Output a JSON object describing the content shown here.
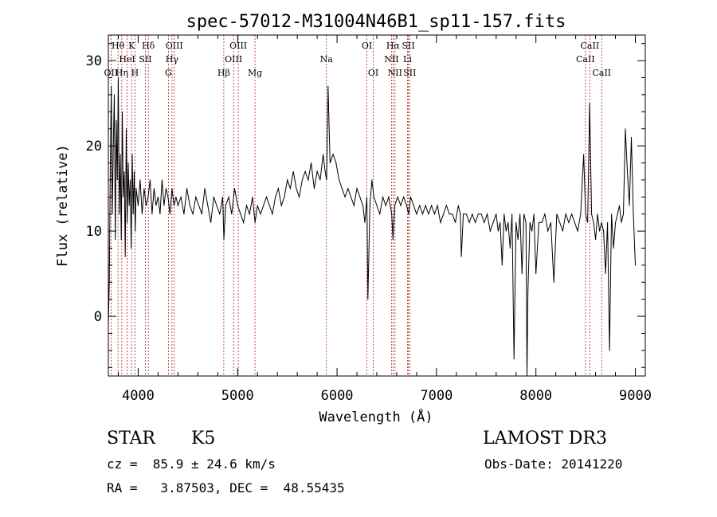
{
  "chart_data": {
    "type": "line",
    "title": "spec-57012-M31004N46B1_sp11-157.fits",
    "xlabel": "Wavelength (Å)",
    "ylabel": "Flux (relative)",
    "xlim": [
      3700,
      9100
    ],
    "ylim": [
      -7,
      33
    ],
    "xticks": [
      4000,
      5000,
      6000,
      7000,
      8000,
      9000
    ],
    "xtick_labels": [
      "4000",
      "5000",
      "6000",
      "7000",
      "8000",
      "9000"
    ],
    "yticks": [
      0,
      10,
      20,
      30
    ],
    "ytick_labels": [
      "0",
      "10",
      "20",
      "30"
    ],
    "series": [
      {
        "name": "flux",
        "color": "#000000",
        "x": [
          3700,
          3710,
          3720,
          3730,
          3740,
          3750,
          3760,
          3770,
          3780,
          3790,
          3800,
          3810,
          3820,
          3830,
          3840,
          3850,
          3860,
          3870,
          3880,
          3890,
          3900,
          3910,
          3920,
          3930,
          3940,
          3950,
          3960,
          3970,
          3980,
          3990,
          4000,
          4020,
          4040,
          4060,
          4080,
          4100,
          4120,
          4140,
          4160,
          4180,
          4200,
          4220,
          4240,
          4260,
          4280,
          4300,
          4320,
          4340,
          4360,
          4380,
          4400,
          4430,
          4460,
          4490,
          4520,
          4550,
          4580,
          4610,
          4640,
          4670,
          4700,
          4730,
          4760,
          4790,
          4820,
          4850,
          4862,
          4880,
          4910,
          4940,
          4970,
          5000,
          5030,
          5060,
          5090,
          5120,
          5150,
          5175,
          5200,
          5230,
          5260,
          5290,
          5320,
          5350,
          5380,
          5410,
          5440,
          5470,
          5500,
          5530,
          5560,
          5590,
          5620,
          5650,
          5680,
          5710,
          5740,
          5770,
          5800,
          5830,
          5860,
          5880,
          5895,
          5910,
          5930,
          5960,
          5990,
          6020,
          6050,
          6080,
          6110,
          6140,
          6170,
          6200,
          6230,
          6260,
          6280,
          6300,
          6310,
          6330,
          6350,
          6370,
          6400,
          6430,
          6460,
          6490,
          6520,
          6550,
          6563,
          6580,
          6610,
          6640,
          6670,
          6700,
          6720,
          6740,
          6770,
          6800,
          6830,
          6860,
          6890,
          6920,
          6950,
          6980,
          7010,
          7040,
          7070,
          7100,
          7130,
          7160,
          7190,
          7220,
          7240,
          7250,
          7270,
          7300,
          7330,
          7360,
          7390,
          7420,
          7450,
          7480,
          7510,
          7540,
          7570,
          7600,
          7620,
          7640,
          7660,
          7680,
          7700,
          7720,
          7740,
          7760,
          7780,
          7800,
          7820,
          7840,
          7860,
          7880,
          7900,
          7910,
          7920,
          7940,
          7960,
          7980,
          8000,
          8030,
          8060,
          8090,
          8120,
          8150,
          8180,
          8210,
          8240,
          8270,
          8300,
          8330,
          8360,
          8390,
          8420,
          8450,
          8480,
          8500,
          8520,
          8540,
          8560,
          8580,
          8600,
          8620,
          8640,
          8660,
          8680,
          8700,
          8720,
          8740,
          8760,
          8780,
          8800,
          8820,
          8840,
          8860,
          8880,
          8900,
          8920,
          8940,
          8960,
          8980,
          9000
        ],
        "y": [
          -1,
          4,
          18,
          27,
          12,
          20,
          26,
          9,
          23,
          16,
          28,
          12,
          19,
          9,
          24,
          14,
          17,
          7,
          22,
          11,
          18,
          13,
          16,
          8,
          19,
          12,
          17,
          10,
          15,
          14,
          13,
          16,
          12,
          15,
          13,
          14,
          16,
          12,
          15,
          13,
          14,
          12,
          16,
          13,
          15,
          14,
          12,
          15,
          13,
          14,
          13,
          14,
          12,
          15,
          13,
          12,
          14,
          13,
          12,
          15,
          13,
          11,
          14,
          13,
          12,
          14,
          9,
          13,
          14,
          12,
          15,
          13,
          12,
          11,
          13,
          12,
          14,
          11,
          13,
          12,
          13,
          14,
          13,
          12,
          14,
          15,
          13,
          14,
          16,
          15,
          17,
          15,
          14,
          16,
          17,
          16,
          18,
          15,
          17,
          16,
          19,
          17,
          16,
          27,
          18,
          19,
          18,
          16,
          15,
          14,
          15,
          14,
          13,
          15,
          14,
          13,
          11,
          14,
          2,
          13,
          16,
          14,
          13,
          12,
          14,
          13,
          14,
          12,
          9,
          13,
          14,
          13,
          14,
          13,
          12,
          14,
          13,
          12,
          13,
          12,
          13,
          12,
          13,
          12,
          13,
          11,
          12,
          13,
          12,
          12,
          11,
          13,
          12,
          7,
          12,
          12,
          11,
          12,
          11,
          12,
          12,
          11,
          12,
          10,
          11,
          12,
          10,
          11,
          6,
          12,
          10,
          11,
          8,
          12,
          -5,
          11,
          9,
          12,
          5,
          12,
          11,
          -7,
          3,
          11,
          10,
          12,
          5,
          11,
          11,
          12,
          10,
          11,
          4,
          12,
          11,
          10,
          12,
          11,
          12,
          11,
          10,
          12,
          19,
          12,
          11,
          25,
          12,
          11,
          9,
          12,
          10,
          11,
          10,
          5,
          11,
          -4,
          12,
          8,
          11,
          12,
          13,
          11,
          12,
          22,
          17,
          13,
          21,
          12,
          6
        ]
      }
    ],
    "line_markers": [
      {
        "label": "Hθ",
        "x": 3797,
        "row": 1
      },
      {
        "label": "OII",
        "x": 3727,
        "row": 3
      },
      {
        "label": "Hη",
        "x": 3835,
        "row": 3
      },
      {
        "label": "HeI",
        "x": 3889,
        "row": 2
      },
      {
        "label": "K",
        "x": 3934,
        "row": 1
      },
      {
        "label": "SII",
        "x": 4072,
        "row": 2
      },
      {
        "label": "H",
        "x": 3968,
        "row": 3
      },
      {
        "label": "Hδ",
        "x": 4102,
        "row": 1
      },
      {
        "label": "OIII",
        "x": 4363,
        "row": 1
      },
      {
        "label": "Hγ",
        "x": 4340,
        "row": 2
      },
      {
        "label": "G",
        "x": 4304,
        "row": 3
      },
      {
        "label": "Hβ",
        "x": 4861,
        "row": 3
      },
      {
        "label": "OIII",
        "x": 5007,
        "row": 1
      },
      {
        "label": "OIII",
        "x": 4959,
        "row": 2
      },
      {
        "label": "Mg",
        "x": 5175,
        "row": 3
      },
      {
        "label": "Na",
        "x": 5893,
        "row": 2
      },
      {
        "label": "OI",
        "x": 6300,
        "row": 1
      },
      {
        "label": "OI",
        "x": 6364,
        "row": 3
      },
      {
        "label": "Hα",
        "x": 6563,
        "row": 1
      },
      {
        "label": "NII",
        "x": 6548,
        "row": 2
      },
      {
        "label": "NII",
        "x": 6583,
        "row": 3
      },
      {
        "label": "SII",
        "x": 6717,
        "row": 1
      },
      {
        "label": "Li",
        "x": 6708,
        "row": 2
      },
      {
        "label": "SII",
        "x": 6731,
        "row": 3
      },
      {
        "label": "CaII",
        "x": 8542,
        "row": 1
      },
      {
        "label": "CaII",
        "x": 8498,
        "row": 2
      },
      {
        "label": "CaII",
        "x": 8662,
        "row": 3
      }
    ],
    "marker_color": "#b22222"
  },
  "info": {
    "object_class": "STAR",
    "subclass": "K5",
    "survey": "LAMOST DR3",
    "redshift_text": "cz =  85.9 ± 24.6 km/s",
    "obs_date": "Obs-Date: 20141220",
    "coords": "RA =   3.87503, DEC =  48.55435"
  }
}
